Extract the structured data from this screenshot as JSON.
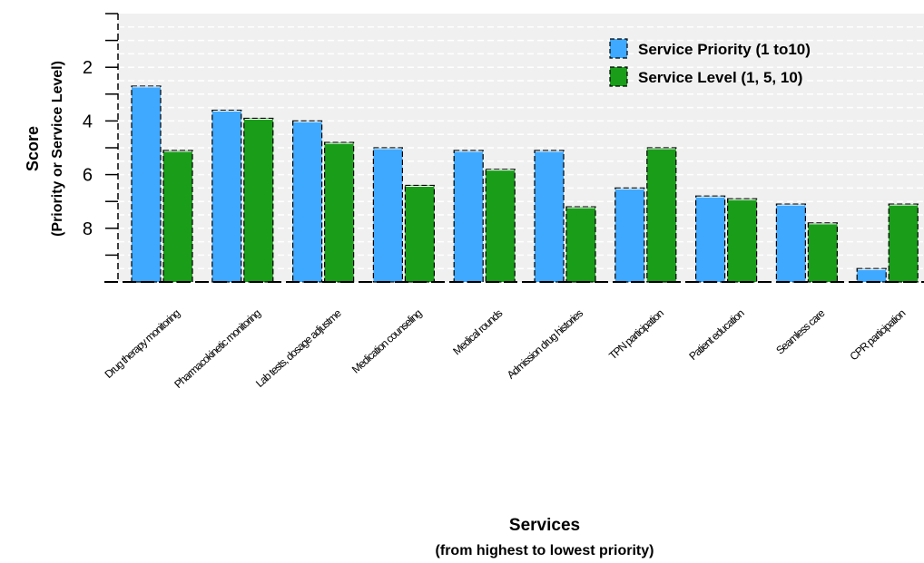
{
  "chart_data": {
    "type": "bar",
    "title": "",
    "xlabel": "Services",
    "xlabel_sub": "(from highest to lowest priority)",
    "ylabel": "Score",
    "ylabel_sub": "(Priority or Service Level)",
    "ylim": [
      10,
      0
    ],
    "y_inverted": true,
    "yticks": [
      "2",
      "4",
      "6",
      "8"
    ],
    "grid": true,
    "legend_position": "top-right",
    "categories": [
      "Drug therapy monitoring",
      "Pharmacokinetic monitoring",
      "Lab tests, dosage adjustme",
      "Medication counseling",
      "Medical rounds",
      "Admission drug histories",
      "TPN participation",
      "Patient education",
      "Seamless care",
      "CPR participation"
    ],
    "series": [
      {
        "name": "Service Priority (1 to10)",
        "color": "#3fa9ff",
        "values": [
          2.7,
          3.6,
          4.0,
          5.0,
          5.1,
          5.1,
          6.5,
          6.8,
          7.1,
          9.5
        ]
      },
      {
        "name": "Service Level (1, 5, 10)",
        "color": "#1a9e1a",
        "values": [
          5.1,
          3.9,
          4.8,
          6.4,
          5.8,
          7.2,
          5.0,
          6.9,
          7.8,
          7.1
        ]
      }
    ]
  }
}
